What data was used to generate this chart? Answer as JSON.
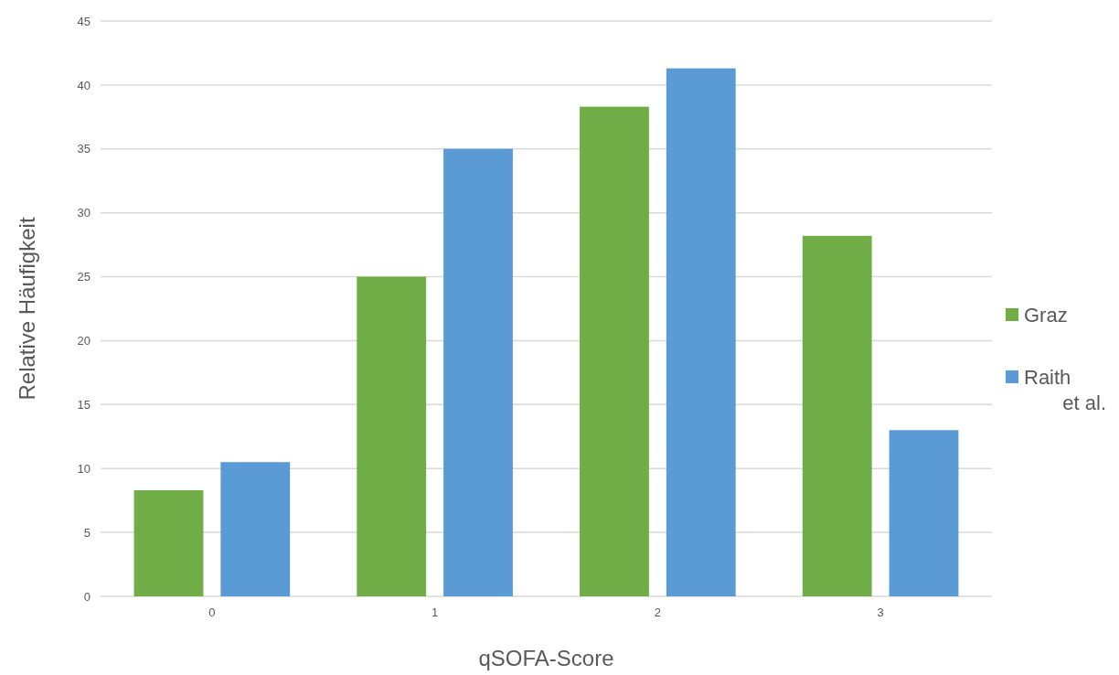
{
  "chart_data": {
    "type": "bar",
    "xlabel": "qSOFA-Score",
    "ylabel": "Relative Häufigkeit",
    "categories": [
      "0",
      "1",
      "2",
      "3"
    ],
    "series": [
      {
        "name": "Graz",
        "color": "#70ad47",
        "values": [
          8.3,
          25,
          38.3,
          28.2
        ]
      },
      {
        "name": "Raith et al.",
        "color": "#5b9bd5",
        "values": [
          10.5,
          35,
          41.3,
          13
        ]
      }
    ],
    "ylim": [
      0,
      45
    ],
    "yticks": [
      0,
      5,
      10,
      15,
      20,
      25,
      30,
      35,
      40,
      45
    ],
    "grid": "y",
    "legend": "right"
  }
}
